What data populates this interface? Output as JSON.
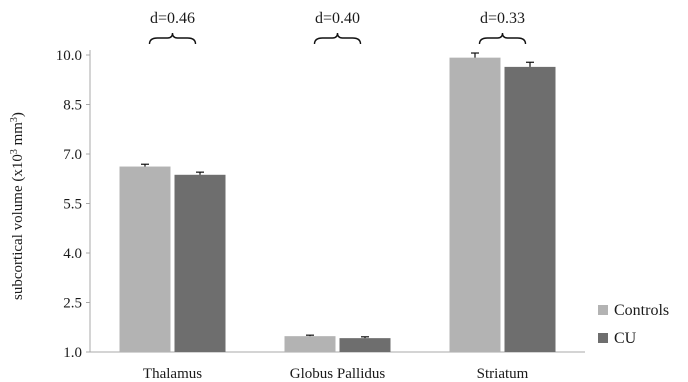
{
  "chart_data": {
    "type": "bar",
    "ylabel_main": "subcortical volume (x10",
    "ylabel_sup": "3",
    "ylabel_unit": " mm",
    "ylabel_close": ")",
    "ylim": [
      1.0,
      10.0
    ],
    "yticks": [
      "1.0",
      "2.5",
      "4.0",
      "5.5",
      "7.0",
      "8.5",
      "10.0"
    ],
    "categories": [
      "Thalamus",
      "Globus Pallidus",
      "Striatum"
    ],
    "series": [
      {
        "name": "Controls",
        "color": "#b3b3b3",
        "values": [
          6.62,
          1.48,
          9.92
        ],
        "errors": [
          0.07,
          0.03,
          0.14
        ]
      },
      {
        "name": "CU",
        "color": "#6e6e6e",
        "values": [
          6.37,
          1.42,
          9.64
        ],
        "errors": [
          0.08,
          0.04,
          0.14
        ]
      }
    ],
    "annotations": [
      "d=0.46",
      "d=0.40",
      "d=0.33"
    ],
    "legend": "right-bottom",
    "grid": false
  }
}
